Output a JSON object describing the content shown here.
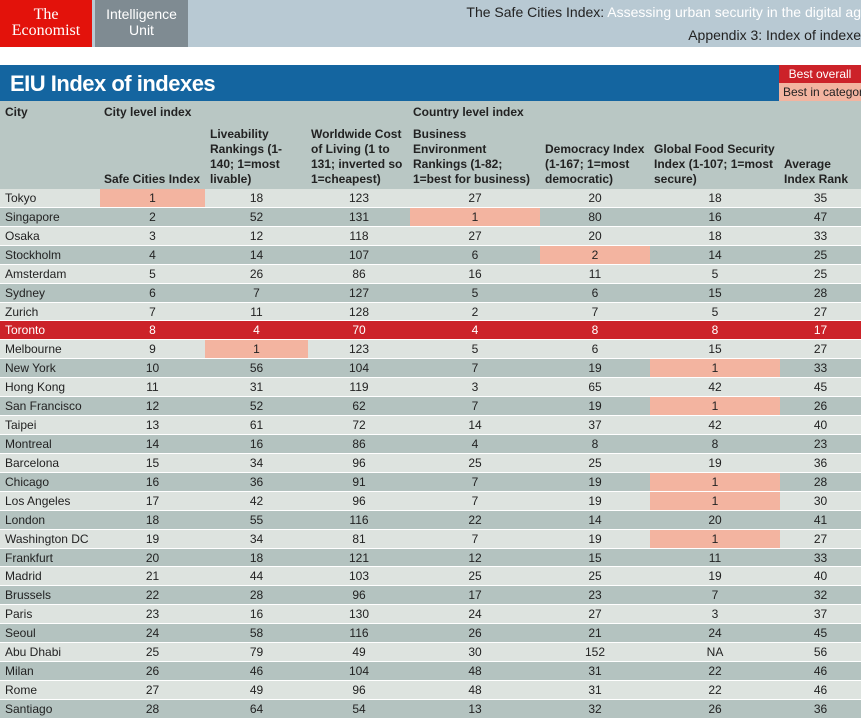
{
  "header": {
    "logo_line1": "The",
    "logo_line2": "Economist",
    "eiu_line1": "Intelligence",
    "eiu_line2": "Unit",
    "report_title": "The Safe Cities Index:",
    "report_subtitle": "Assessing urban security in the digital ag",
    "appendix": "Appendix 3: Index of indexe"
  },
  "title": "EIU Index of indexes",
  "legend": {
    "best_overall": "Best overall",
    "best_in_category": "Best in categor",
    "colors": {
      "best_overall": "#cc2229",
      "best_in_category": "#f3b4a0"
    }
  },
  "columns": {
    "city": "City",
    "city_level": "City level index",
    "country_level": "Country level index",
    "safe": "Safe Cities Index",
    "live": "Liveability Rankings (1-140; 1=most livable)",
    "cost": "Worldwide Cost of Living (1 to 131; inverted so 1=cheapest)",
    "biz": "Business Environment Rankings (1-82; 1=best for business)",
    "demo": "Democracy Index (1-167; 1=most democratic)",
    "food": "Global Food Security Index (1-107; 1=most secure)",
    "avg": "Average Index Rank"
  },
  "rows": [
    {
      "city": "Tokyo",
      "v": [
        "1",
        "18",
        "123",
        "27",
        "20",
        "18",
        "35"
      ],
      "hi": [
        0
      ]
    },
    {
      "city": "Singapore",
      "v": [
        "2",
        "52",
        "131",
        "1",
        "80",
        "16",
        "47"
      ],
      "hi": [
        3
      ]
    },
    {
      "city": "Osaka",
      "v": [
        "3",
        "12",
        "118",
        "27",
        "20",
        "18",
        "33"
      ],
      "hi": []
    },
    {
      "city": "Stockholm",
      "v": [
        "4",
        "14",
        "107",
        "6",
        "2",
        "14",
        "25"
      ],
      "hi": [
        4
      ]
    },
    {
      "city": "Amsterdam",
      "v": [
        "5",
        "26",
        "86",
        "16",
        "11",
        "5",
        "25"
      ],
      "hi": []
    },
    {
      "city": "Sydney",
      "v": [
        "6",
        "7",
        "127",
        "5",
        "6",
        "15",
        "28"
      ],
      "hi": []
    },
    {
      "city": "Zurich",
      "v": [
        "7",
        "11",
        "128",
        "2",
        "7",
        "5",
        "27"
      ],
      "hi": []
    },
    {
      "city": "Toronto",
      "v": [
        "8",
        "4",
        "70",
        "4",
        "8",
        "8",
        "17"
      ],
      "hi": [],
      "best_overall": true
    },
    {
      "city": "Melbourne",
      "v": [
        "9",
        "1",
        "123",
        "5",
        "6",
        "15",
        "27"
      ],
      "hi": [
        1
      ]
    },
    {
      "city": "New York",
      "v": [
        "10",
        "56",
        "104",
        "7",
        "19",
        "1",
        "33"
      ],
      "hi": [
        5
      ]
    },
    {
      "city": "Hong Kong",
      "v": [
        "11",
        "31",
        "119",
        "3",
        "65",
        "42",
        "45"
      ],
      "hi": []
    },
    {
      "city": "San Francisco",
      "v": [
        "12",
        "52",
        "62",
        "7",
        "19",
        "1",
        "26"
      ],
      "hi": [
        5
      ]
    },
    {
      "city": "Taipei",
      "v": [
        "13",
        "61",
        "72",
        "14",
        "37",
        "42",
        "40"
      ],
      "hi": []
    },
    {
      "city": "Montreal",
      "v": [
        "14",
        "16",
        "86",
        "4",
        "8",
        "8",
        "23"
      ],
      "hi": []
    },
    {
      "city": "Barcelona",
      "v": [
        "15",
        "34",
        "96",
        "25",
        "25",
        "19",
        "36"
      ],
      "hi": []
    },
    {
      "city": "Chicago",
      "v": [
        "16",
        "36",
        "91",
        "7",
        "19",
        "1",
        "28"
      ],
      "hi": [
        5
      ]
    },
    {
      "city": "Los Angeles",
      "v": [
        "17",
        "42",
        "96",
        "7",
        "19",
        "1",
        "30"
      ],
      "hi": [
        5
      ]
    },
    {
      "city": "London",
      "v": [
        "18",
        "55",
        "116",
        "22",
        "14",
        "20",
        "41"
      ],
      "hi": []
    },
    {
      "city": "Washington DC",
      "v": [
        "19",
        "34",
        "81",
        "7",
        "19",
        "1",
        "27"
      ],
      "hi": [
        5
      ]
    },
    {
      "city": "Frankfurt",
      "v": [
        "20",
        "18",
        "121",
        "12",
        "15",
        "11",
        "33"
      ],
      "hi": []
    },
    {
      "city": "Madrid",
      "v": [
        "21",
        "44",
        "103",
        "25",
        "25",
        "19",
        "40"
      ],
      "hi": []
    },
    {
      "city": "Brussels",
      "v": [
        "22",
        "28",
        "96",
        "17",
        "23",
        "7",
        "32"
      ],
      "hi": []
    },
    {
      "city": "Paris",
      "v": [
        "23",
        "16",
        "130",
        "24",
        "27",
        "3",
        "37"
      ],
      "hi": []
    },
    {
      "city": "Seoul",
      "v": [
        "24",
        "58",
        "116",
        "26",
        "21",
        "24",
        "45"
      ],
      "hi": []
    },
    {
      "city": "Abu Dhabi",
      "v": [
        "25",
        "79",
        "49",
        "30",
        "152",
        "NA",
        "56"
      ],
      "hi": []
    },
    {
      "city": "Milan",
      "v": [
        "26",
        "46",
        "104",
        "48",
        "31",
        "22",
        "46"
      ],
      "hi": []
    },
    {
      "city": "Rome",
      "v": [
        "27",
        "49",
        "96",
        "48",
        "31",
        "22",
        "46"
      ],
      "hi": []
    },
    {
      "city": "Santiago",
      "v": [
        "28",
        "64",
        "54",
        "13",
        "32",
        "26",
        "36"
      ],
      "hi": []
    }
  ]
}
